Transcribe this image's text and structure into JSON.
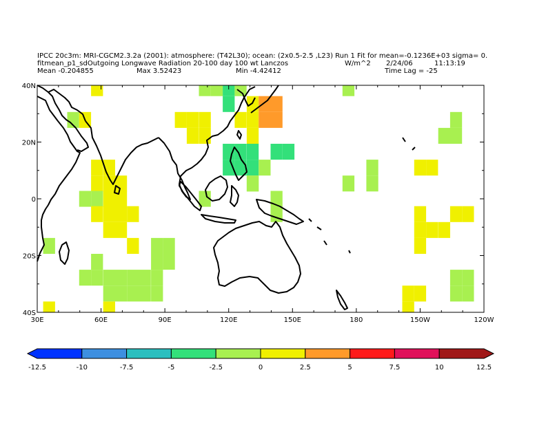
{
  "header": {
    "line1": "IPCC 20c3m: MRI-CGCM2.3.2a (2001): atmosphere: (T42L30); ocean: (2x0.5-2.5 ,L23) Run 1 Fit for mean=-0.1236E+03 sigma= 0.",
    "line2_left": "fitmean_p1_sdOutgoing Longwave Radiation 20-100 day 100 wt Lanczos",
    "units": "W/m^2",
    "date": "2/24/06",
    "time": "11:13:19",
    "mean": "Mean -0.204855",
    "max": "Max 3.52423",
    "min": "Min -4.42412",
    "time_lag": "Time Lag = -25"
  },
  "map": {
    "lon_labels": [
      "30E",
      "60E",
      "90E",
      "120E",
      "150E",
      "180",
      "150W",
      "120W"
    ],
    "lat_labels": [
      "40N",
      "20N",
      "0",
      "20S",
      "40S"
    ]
  },
  "colorbar": {
    "labels": [
      "-12.5",
      "-10",
      "-7.5",
      "-5",
      "-2.5",
      "0",
      "2.5",
      "5",
      "7.5",
      "10",
      "12.5"
    ],
    "colors": [
      "#0033ff",
      "#3d8fe0",
      "#2bbfbf",
      "#33e07a",
      "#a8f050",
      "#f0f000",
      "#ff9a2a",
      "#ff1a1a",
      "#e0105a",
      "#a01818"
    ]
  },
  "chart_data": {
    "type": "heatmap",
    "title": "fitmean_p1_sdOutgoing Longwave Radiation 20-100 day 100 wt Lanczos",
    "units": "W/m^2",
    "lon_range": [
      30,
      240
    ],
    "lat_range": [
      -40,
      40
    ],
    "grid_spacing_deg": 5.6,
    "cells": [
      {
        "lon": 58.1,
        "lat": 39.0,
        "value": 1.2
      },
      {
        "lon": 108.8,
        "lat": 39.0,
        "value": -1.2
      },
      {
        "lon": 114.4,
        "lat": 39.0,
        "value": -1.2
      },
      {
        "lon": 120.0,
        "lat": 39.0,
        "value": -3.5
      },
      {
        "lon": 125.6,
        "lat": 39.0,
        "value": -1.2
      },
      {
        "lon": 176.3,
        "lat": 39.0,
        "value": -1.2
      },
      {
        "lon": 120.0,
        "lat": 33.4,
        "value": -3.5
      },
      {
        "lon": 131.3,
        "lat": 33.4,
        "value": 1.2
      },
      {
        "lon": 136.9,
        "lat": 33.4,
        "value": 3.5
      },
      {
        "lon": 142.5,
        "lat": 33.4,
        "value": 3.5
      },
      {
        "lon": 46.9,
        "lat": 27.8,
        "value": -1.2
      },
      {
        "lon": 52.5,
        "lat": 27.8,
        "value": 1.2
      },
      {
        "lon": 97.5,
        "lat": 27.8,
        "value": 1.2
      },
      {
        "lon": 103.1,
        "lat": 27.8,
        "value": 1.2
      },
      {
        "lon": 108.8,
        "lat": 27.8,
        "value": 1.2
      },
      {
        "lon": 125.6,
        "lat": 27.8,
        "value": 1.2
      },
      {
        "lon": 131.3,
        "lat": 27.8,
        "value": 1.2
      },
      {
        "lon": 136.9,
        "lat": 27.8,
        "value": 3.5
      },
      {
        "lon": 142.5,
        "lat": 27.8,
        "value": 3.5
      },
      {
        "lon": 226.9,
        "lat": 27.8,
        "value": -1.2
      },
      {
        "lon": 103.1,
        "lat": 22.2,
        "value": 1.2
      },
      {
        "lon": 108.8,
        "lat": 22.2,
        "value": 1.2
      },
      {
        "lon": 131.3,
        "lat": 22.2,
        "value": 1.2
      },
      {
        "lon": 221.3,
        "lat": 22.2,
        "value": -1.2
      },
      {
        "lon": 226.9,
        "lat": 22.2,
        "value": -1.2
      },
      {
        "lon": 120.0,
        "lat": 16.6,
        "value": -3.5
      },
      {
        "lon": 125.6,
        "lat": 16.6,
        "value": -3.5
      },
      {
        "lon": 131.3,
        "lat": 16.6,
        "value": -3.5
      },
      {
        "lon": 142.5,
        "lat": 16.6,
        "value": -3.5
      },
      {
        "lon": 148.1,
        "lat": 16.6,
        "value": -3.5
      },
      {
        "lon": 58.1,
        "lat": 11.0,
        "value": 1.2
      },
      {
        "lon": 63.8,
        "lat": 11.0,
        "value": 1.2
      },
      {
        "lon": 120.0,
        "lat": 11.0,
        "value": -3.5
      },
      {
        "lon": 125.6,
        "lat": 11.0,
        "value": -3.5
      },
      {
        "lon": 131.3,
        "lat": 11.0,
        "value": -3.5
      },
      {
        "lon": 136.9,
        "lat": 11.0,
        "value": -1.2
      },
      {
        "lon": 187.5,
        "lat": 11.0,
        "value": -1.2
      },
      {
        "lon": 210.0,
        "lat": 11.0,
        "value": 1.2
      },
      {
        "lon": 215.6,
        "lat": 11.0,
        "value": 1.2
      },
      {
        "lon": 58.1,
        "lat": 5.4,
        "value": 1.2
      },
      {
        "lon": 63.8,
        "lat": 5.4,
        "value": 1.2
      },
      {
        "lon": 69.4,
        "lat": 5.4,
        "value": 1.2
      },
      {
        "lon": 131.3,
        "lat": 5.4,
        "value": -1.2
      },
      {
        "lon": 131.3,
        "lat": 5.4,
        "value": -1.2
      },
      {
        "lon": 176.3,
        "lat": 5.4,
        "value": -1.2
      },
      {
        "lon": 187.5,
        "lat": 5.4,
        "value": -1.2
      },
      {
        "lon": 52.5,
        "lat": 0.0,
        "value": -1.2
      },
      {
        "lon": 58.1,
        "lat": 0.0,
        "value": -1.2
      },
      {
        "lon": 63.8,
        "lat": 0.0,
        "value": 1.2
      },
      {
        "lon": 69.4,
        "lat": 0.0,
        "value": 1.2
      },
      {
        "lon": 108.8,
        "lat": 0.0,
        "value": -1.2
      },
      {
        "lon": 142.5,
        "lat": 0.0,
        "value": -1.2
      },
      {
        "lon": 58.1,
        "lat": -5.4,
        "value": 1.2
      },
      {
        "lon": 63.8,
        "lat": -5.4,
        "value": 1.2
      },
      {
        "lon": 69.4,
        "lat": -5.4,
        "value": 1.2
      },
      {
        "lon": 75.0,
        "lat": -5.4,
        "value": 1.2
      },
      {
        "lon": 142.5,
        "lat": -5.4,
        "value": -1.2
      },
      {
        "lon": 210.0,
        "lat": -5.4,
        "value": 1.2
      },
      {
        "lon": 226.9,
        "lat": -5.4,
        "value": 1.2
      },
      {
        "lon": 232.5,
        "lat": -5.4,
        "value": 1.2
      },
      {
        "lon": 63.8,
        "lat": -11.0,
        "value": 1.2
      },
      {
        "lon": 69.4,
        "lat": -11.0,
        "value": 1.2
      },
      {
        "lon": 210.0,
        "lat": -11.0,
        "value": 1.2
      },
      {
        "lon": 215.6,
        "lat": -11.0,
        "value": 1.2
      },
      {
        "lon": 221.3,
        "lat": -11.0,
        "value": 1.2
      },
      {
        "lon": 35.6,
        "lat": -16.6,
        "value": -1.2
      },
      {
        "lon": 75.0,
        "lat": -16.6,
        "value": 1.2
      },
      {
        "lon": 86.3,
        "lat": -16.6,
        "value": -1.2
      },
      {
        "lon": 91.9,
        "lat": -16.6,
        "value": -1.2
      },
      {
        "lon": 210.0,
        "lat": -16.6,
        "value": 1.2
      },
      {
        "lon": 58.1,
        "lat": -22.2,
        "value": -1.2
      },
      {
        "lon": 86.3,
        "lat": -22.2,
        "value": -1.2
      },
      {
        "lon": 91.9,
        "lat": -22.2,
        "value": -1.2
      },
      {
        "lon": 52.5,
        "lat": -27.8,
        "value": -1.2
      },
      {
        "lon": 58.1,
        "lat": -27.8,
        "value": -1.2
      },
      {
        "lon": 63.8,
        "lat": -27.8,
        "value": -1.2
      },
      {
        "lon": 69.4,
        "lat": -27.8,
        "value": -1.2
      },
      {
        "lon": 75.0,
        "lat": -27.8,
        "value": -1.2
      },
      {
        "lon": 80.6,
        "lat": -27.8,
        "value": -1.2
      },
      {
        "lon": 86.3,
        "lat": -27.8,
        "value": -1.2
      },
      {
        "lon": 226.9,
        "lat": -27.8,
        "value": -1.2
      },
      {
        "lon": 232.5,
        "lat": -27.8,
        "value": -1.2
      },
      {
        "lon": 63.8,
        "lat": -33.4,
        "value": -1.2
      },
      {
        "lon": 69.4,
        "lat": -33.4,
        "value": -1.2
      },
      {
        "lon": 75.0,
        "lat": -33.4,
        "value": -1.2
      },
      {
        "lon": 80.6,
        "lat": -33.4,
        "value": -1.2
      },
      {
        "lon": 86.3,
        "lat": -33.4,
        "value": -1.2
      },
      {
        "lon": 204.4,
        "lat": -33.4,
        "value": 1.2
      },
      {
        "lon": 210.0,
        "lat": -33.4,
        "value": 1.2
      },
      {
        "lon": 226.9,
        "lat": -33.4,
        "value": -1.2
      },
      {
        "lon": 232.5,
        "lat": -33.4,
        "value": -1.2
      },
      {
        "lon": 35.6,
        "lat": -39.0,
        "value": 1.2
      },
      {
        "lon": 63.8,
        "lat": -39.0,
        "value": 1.2
      },
      {
        "lon": 204.4,
        "lat": -39.0,
        "value": 1.2
      }
    ]
  }
}
